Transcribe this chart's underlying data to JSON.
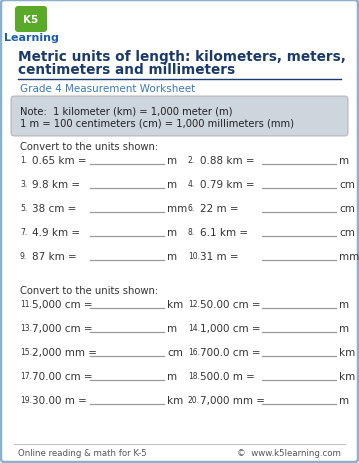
{
  "title_line1": "Metric units of length: kilometers, meters,",
  "title_line2": "centimeters and millimeters",
  "subtitle": "Grade 4 Measurement Worksheet",
  "note_line1": "Note:  1 kilometer (km) = 1,000 meter (m)",
  "note_line2": "1 m = 100 centimeters (cm) = 1,000 millimeters (mm)",
  "section1_header": "Convert to the units shown:",
  "section2_header": "Convert to the units shown:",
  "footer_left": "Online reading & math for K-5",
  "footer_right": "©  www.k5learning.com",
  "problems_col1": [
    {
      "num": "1",
      "expr": "0.65 km =",
      "unit": "m"
    },
    {
      "num": "3",
      "expr": "9.8 km =",
      "unit": "m"
    },
    {
      "num": "5",
      "expr": "38 cm =",
      "unit": "mm"
    },
    {
      "num": "7",
      "expr": "4.9 km =",
      "unit": "m"
    },
    {
      "num": "9",
      "expr": "87 km =",
      "unit": "m"
    }
  ],
  "problems_col2": [
    {
      "num": "2",
      "expr": "0.88 km =",
      "unit": "m"
    },
    {
      "num": "4",
      "expr": "0.79 km =",
      "unit": "cm"
    },
    {
      "num": "6",
      "expr": "22 m =",
      "unit": "cm"
    },
    {
      "num": "8",
      "expr": "6.1 km =",
      "unit": "cm"
    },
    {
      "num": "10",
      "expr": "31 m =",
      "unit": "mm"
    }
  ],
  "problems2_col1": [
    {
      "num": "11",
      "expr": "5,000 cm =",
      "unit": "km"
    },
    {
      "num": "13",
      "expr": "7,000 cm =",
      "unit": "m"
    },
    {
      "num": "15",
      "expr": "2,000 mm =",
      "unit": "cm"
    },
    {
      "num": "17",
      "expr": "70.00 cm =",
      "unit": "m"
    },
    {
      "num": "19",
      "expr": "30.00 m =",
      "unit": "km"
    }
  ],
  "problems2_col2": [
    {
      "num": "12",
      "expr": "50.00 cm =",
      "unit": "m"
    },
    {
      "num": "14",
      "expr": "1,000 cm =",
      "unit": "m"
    },
    {
      "num": "16",
      "expr": "700.0 cm =",
      "unit": "km"
    },
    {
      "num": "18",
      "expr": "500.0 m =",
      "unit": "km"
    },
    {
      "num": "20",
      "expr": "7,000 mm =",
      "unit": "m"
    }
  ],
  "bg_color": "#ffffff",
  "border_color": "#8ab0cc",
  "title_color": "#1a3a6b",
  "subtitle_color": "#3a7abf",
  "note_bg": "#cdd5dd",
  "note_text_color": "#222222",
  "problem_text_color": "#333333",
  "line_color": "#999999",
  "footer_color": "#555555",
  "header_line_color": "#1a3a6b",
  "logo_green": "#5aaa2a",
  "logo_blue": "#1a5fa8"
}
